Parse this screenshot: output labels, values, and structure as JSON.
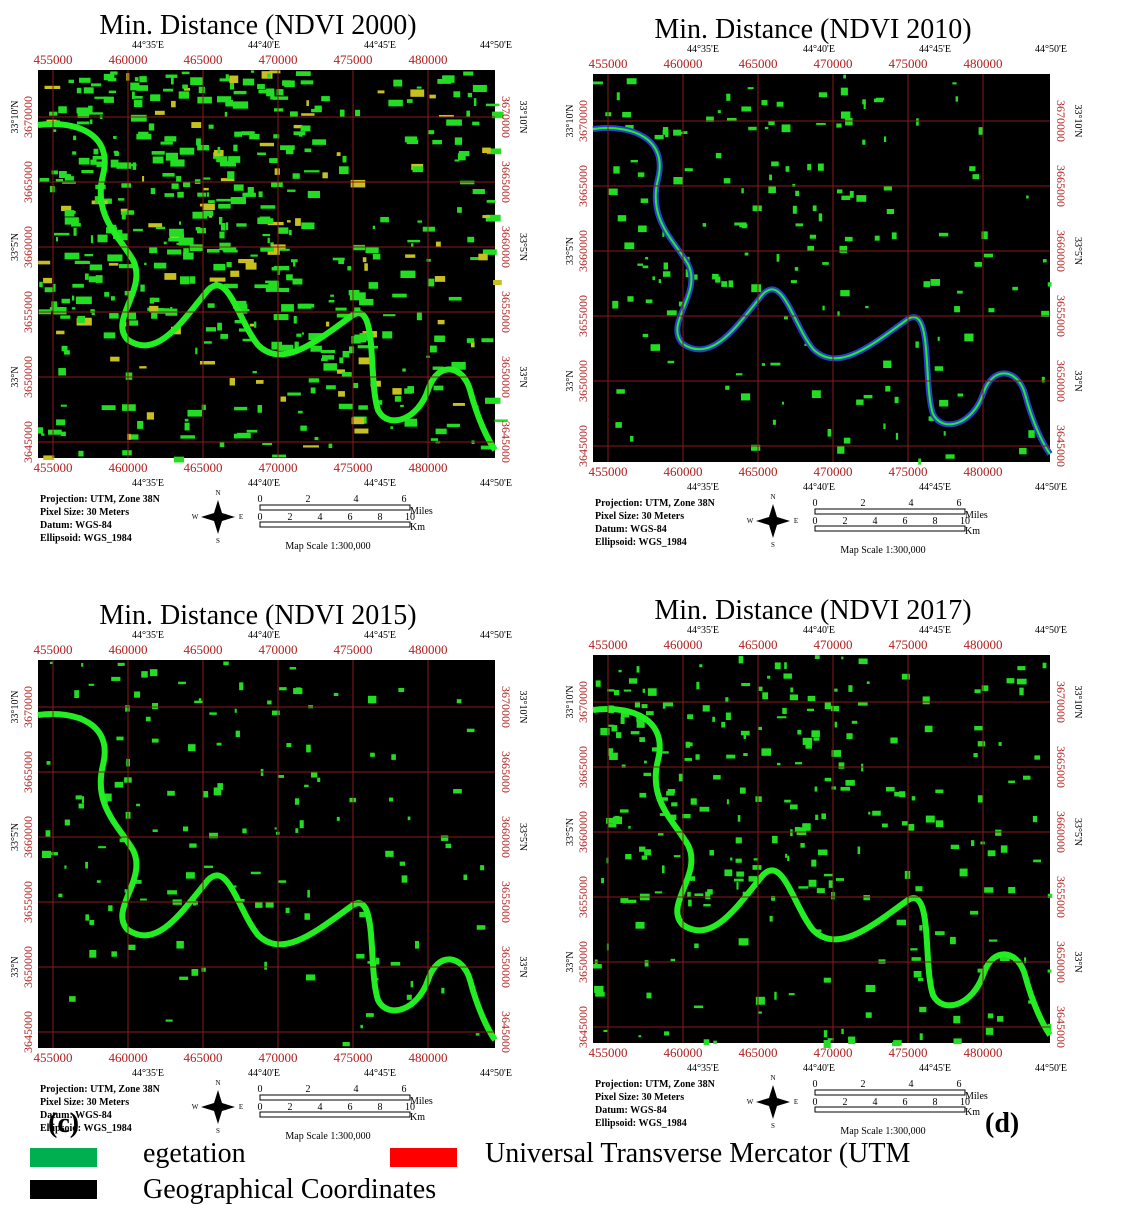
{
  "panels": [
    {
      "title": "Min. Distance (NDVI 2000)"
    },
    {
      "title": "Min. Distance (NDVI 2010)"
    },
    {
      "title": "Min. Distance (NDVI 2015)"
    },
    {
      "title": "Min. Distance (NDVI 2017)"
    }
  ],
  "frame": {
    "eastings": [
      "455000",
      "460000",
      "465000",
      "470000",
      "475000",
      "480000"
    ],
    "longitudes": [
      "44°35'E",
      "44°40'E",
      "44°45'E",
      "44°50'E"
    ],
    "northings": [
      "3670000",
      "3665000",
      "3660000",
      "3655000",
      "3650000",
      "3645000"
    ],
    "latitudes": [
      "33°10'N",
      "33°5'N",
      "33°N"
    ],
    "info": [
      "Projection: UTM, Zone 38N",
      "Pixel Size: 30 Meters",
      "Datum:     WGS-84",
      "Ellipsoid:  WGS_1984"
    ],
    "compass": [
      "N",
      "E",
      "S",
      "W"
    ],
    "miles": [
      "0",
      "2",
      "4",
      "6"
    ],
    "miles_unit": "Miles",
    "km": [
      "0",
      "2",
      "4",
      "6",
      "8",
      "10"
    ],
    "km_unit": "Km",
    "scale": "Map Scale 1:300,000"
  },
  "labels": [
    "(c)",
    "(d)"
  ],
  "legend": [
    {
      "label": "egetation",
      "color": "#00b050"
    },
    {
      "label": "Universal Transverse Mercator (UTM",
      "color": "#ff0000"
    },
    {
      "label": "Geographical Coordinates",
      "color": "#000000"
    }
  ]
}
